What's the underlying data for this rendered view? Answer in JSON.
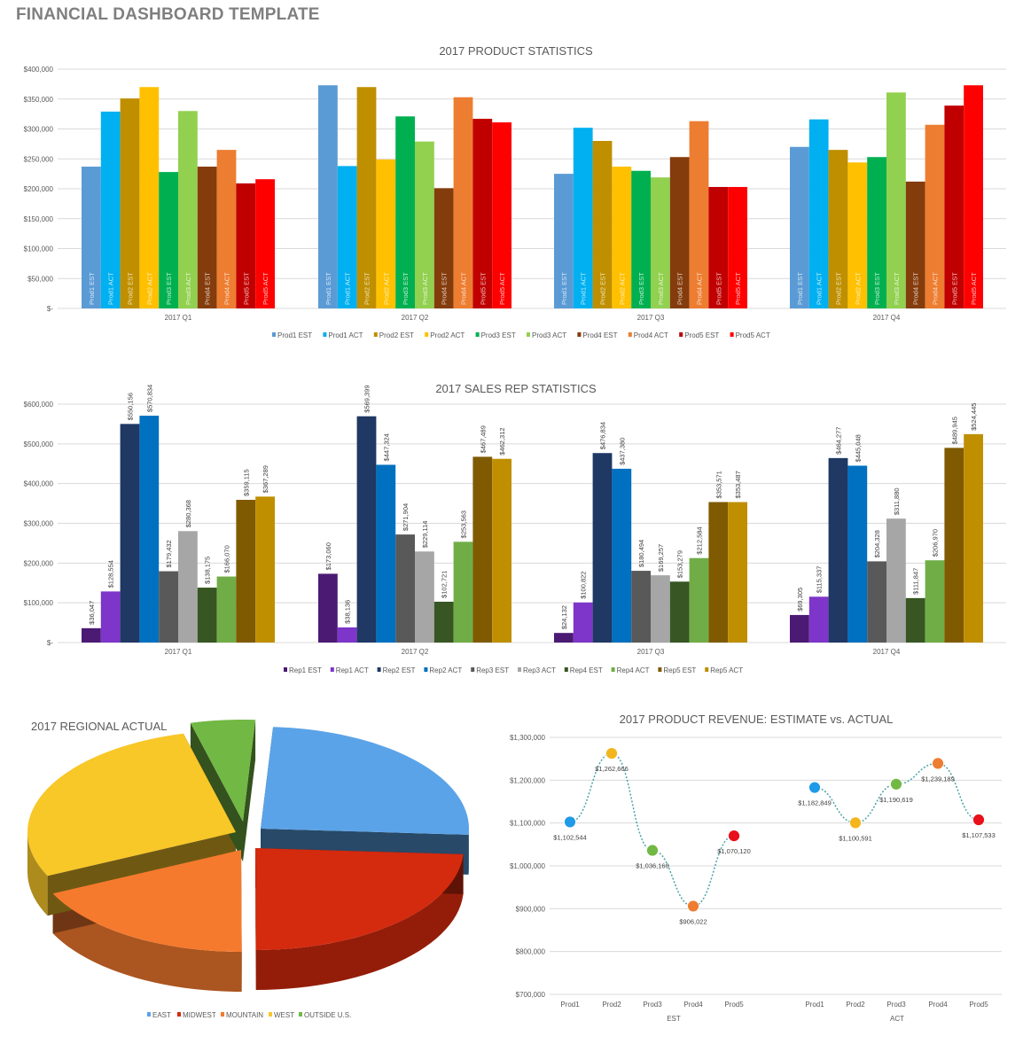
{
  "page_title": "FINANCIAL DASHBOARD TEMPLATE",
  "chart_data": [
    {
      "type": "bar",
      "title": "2017 PRODUCT STATISTICS",
      "categories": [
        "2017 Q1",
        "2017 Q2",
        "2017 Q3",
        "2017 Q4"
      ],
      "ylim": [
        0,
        400000
      ],
      "yticks": [
        "$-",
        "$50,000",
        "$100,000",
        "$150,000",
        "$200,000",
        "$250,000",
        "$300,000",
        "$350,000",
        "$400,000"
      ],
      "grid": true,
      "legend": "bottom",
      "series": [
        {
          "name": "Prod1 EST",
          "color": "#5b9bd5",
          "values": [
            237000,
            373000,
            225000,
            270000
          ]
        },
        {
          "name": "Prod1 ACT",
          "color": "#00b0f0",
          "values": [
            329000,
            238000,
            302000,
            316000
          ]
        },
        {
          "name": "Prod2 EST",
          "color": "#bf8f00",
          "values": [
            351000,
            370000,
            280000,
            265000
          ]
        },
        {
          "name": "Prod2 ACT",
          "color": "#ffc000",
          "values": [
            370000,
            249000,
            237000,
            244000
          ]
        },
        {
          "name": "Prod3 EST",
          "color": "#00b050",
          "values": [
            228000,
            321000,
            230000,
            253000
          ]
        },
        {
          "name": "Prod3 ACT",
          "color": "#92d050",
          "values": [
            330000,
            279000,
            219000,
            361000
          ]
        },
        {
          "name": "Prod4 EST",
          "color": "#843c0c",
          "values": [
            237000,
            201000,
            253000,
            212000
          ]
        },
        {
          "name": "Prod4 ACT",
          "color": "#ed7d31",
          "values": [
            265000,
            353000,
            313000,
            307000
          ]
        },
        {
          "name": "Prod5 EST",
          "color": "#c00000",
          "values": [
            209000,
            317000,
            203000,
            339000
          ]
        },
        {
          "name": "Prod5 ACT",
          "color": "#ff0000",
          "values": [
            216000,
            311000,
            203000,
            373000
          ]
        }
      ]
    },
    {
      "type": "bar",
      "title": "2017 SALES REP STATISTICS",
      "categories": [
        "2017 Q1",
        "2017 Q2",
        "2017 Q3",
        "2017 Q4"
      ],
      "ylim": [
        0,
        600000
      ],
      "yticks": [
        "$-",
        "$100,000",
        "$200,000",
        "$300,000",
        "$400,000",
        "$500,000",
        "$600,000"
      ],
      "grid": true,
      "legend": "bottom",
      "series": [
        {
          "name": "Rep1 EST",
          "color": "#4b1a73",
          "values": [
            36047,
            173060,
            24132,
            69305
          ],
          "labels": [
            "$36,047",
            "$173,060",
            "$24,132",
            "$69,305"
          ]
        },
        {
          "name": "Rep1 ACT",
          "color": "#7e35c9",
          "values": [
            128554,
            38136,
            100822,
            115337
          ],
          "labels": [
            "$128,554",
            "$38,136",
            "$100,822",
            "$115,337"
          ]
        },
        {
          "name": "Rep2 EST",
          "color": "#1f3864",
          "values": [
            550156,
            569399,
            476834,
            464277
          ],
          "labels": [
            "$550,156",
            "$569,399",
            "$476,834",
            "$464,277"
          ]
        },
        {
          "name": "Rep2 ACT",
          "color": "#0070c0",
          "values": [
            570834,
            447324,
            437380,
            445048
          ],
          "labels": [
            "$570,834",
            "$447,324",
            "$437,380",
            "$445,048"
          ]
        },
        {
          "name": "Rep3 EST",
          "color": "#595959",
          "values": [
            179432,
            271904,
            180494,
            204328
          ],
          "labels": [
            "$179,432",
            "$271,904",
            "$180,494",
            "$204,328"
          ]
        },
        {
          "name": "Rep3 ACT",
          "color": "#a6a6a6",
          "values": [
            280368,
            229114,
            169257,
            311880
          ],
          "labels": [
            "$280,368",
            "$229,114",
            "$169,257",
            "$311,880"
          ]
        },
        {
          "name": "Rep4 EST",
          "color": "#375623",
          "values": [
            138175,
            102721,
            153279,
            111847
          ],
          "labels": [
            "$138,175",
            "$102,721",
            "$153,279",
            "$111,847"
          ]
        },
        {
          "name": "Rep4 ACT",
          "color": "#70ad47",
          "values": [
            166070,
            253563,
            212584,
            206970
          ],
          "labels": [
            "$166,070",
            "$253,563",
            "$212,584",
            "$206,970"
          ]
        },
        {
          "name": "Rep5 EST",
          "color": "#7f5a00",
          "values": [
            359115,
            467489,
            353571,
            489945
          ],
          "labels": [
            "$359,115",
            "$467,489",
            "$353,571",
            "$489,945"
          ]
        },
        {
          "name": "Rep5 ACT",
          "color": "#bf8f00",
          "values": [
            367289,
            462312,
            353487,
            524445
          ],
          "labels": [
            "$367,289",
            "$462,312",
            "$353,487",
            "$524,445"
          ]
        }
      ]
    },
    {
      "type": "pie",
      "title": "2017 REGIONAL ACTUAL",
      "legend": "bottom",
      "categories": [
        "EAST",
        "MIDWEST",
        "MOUNTAIN",
        "WEST",
        "OUTSIDE U.S."
      ],
      "values": [
        25,
        24,
        18,
        28,
        5
      ],
      "colors": [
        "#5ba3e8",
        "#d42a0e",
        "#f57a2e",
        "#f8c728",
        "#72b844"
      ]
    },
    {
      "type": "line",
      "title": "2017 PRODUCT REVENUE: ESTIMATE vs. ACTUAL",
      "ylim": [
        700000,
        1300000
      ],
      "yticks": [
        "$700,000",
        "$800,000",
        "$900,000",
        "$1,000,000",
        "$1,100,000",
        "$1,200,000",
        "$1,300,000"
      ],
      "grid": true,
      "groups": [
        {
          "name": "EST",
          "categories": [
            "Prod1",
            "Prod2",
            "Prod3",
            "Prod4",
            "Prod5"
          ],
          "values": [
            1102544,
            1262666,
            1036160,
            906022,
            1070120
          ],
          "labels": [
            "$1,102,544",
            "$1,262,666",
            "$1,036,160",
            "$906,022",
            "$1,070,120"
          ]
        },
        {
          "name": "ACT",
          "categories": [
            "Prod1",
            "Prod2",
            "Prod3",
            "Prod4",
            "Prod5"
          ],
          "values": [
            1182849,
            1100591,
            1190619,
            1239189,
            1107533
          ],
          "labels": [
            "$1,182,849",
            "$1,100,591",
            "$1,190,619",
            "$1,239,189",
            "$1,107,533"
          ]
        }
      ],
      "point_colors": [
        "#1e9be8",
        "#f2b51e",
        "#72b844",
        "#ed7d31",
        "#e8101a"
      ],
      "line_color": "#4aa3a8"
    }
  ]
}
